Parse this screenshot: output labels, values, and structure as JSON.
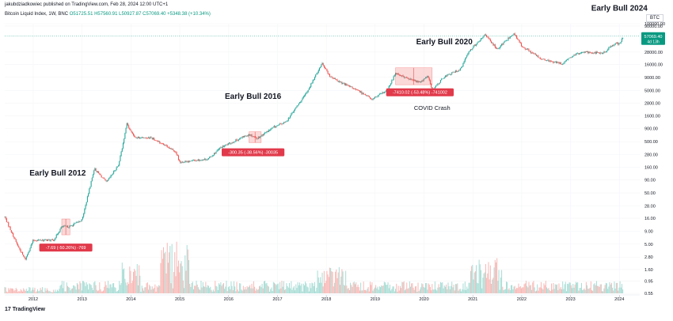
{
  "publisher": "jakubdziadkowiec published on TradingView.com, Feb 28, 2024 12:00 UTC+1",
  "legend": {
    "symbol": "Bitcoin Liquid Index, 1W, BNC",
    "ohlc": "O51725.51  H57560.91  L50927.87  C57069.40  +5348.38 (+10.34%)"
  },
  "currency": "BTC",
  "brand": "TradingView",
  "colors": {
    "up": "#26a69a",
    "down": "#ef5350",
    "vol_up": "#a8dcd5",
    "vol_down": "#f7b8b5",
    "axis_text": "#131722",
    "price_tag": "#089981",
    "annot_bg": "#e13a4b"
  },
  "chart_data": {
    "type": "candlestick",
    "title": "",
    "y_scale": "log",
    "ylim": [
      0.55,
      100000
    ],
    "xlim": [
      "2011-06",
      "2024-06"
    ],
    "y_tick_labels": [
      "100000.00",
      "90000.00",
      "28000.00",
      "16000.00",
      "9000.00",
      "5000.00",
      "2800.00",
      "1600.00",
      "900.00",
      "500.00",
      "280.00",
      "160.00",
      "90.00",
      "50.00",
      "28.00",
      "16.00",
      "9.00",
      "5.00",
      "2.80",
      "1.60",
      "0.95",
      "0.55"
    ],
    "x_tick_labels": [
      "2012",
      "2013",
      "2014",
      "2015",
      "2016",
      "2017",
      "2018",
      "2019",
      "2020",
      "2021",
      "2022",
      "2023",
      "2024"
    ],
    "last_price": {
      "value": "57069.40",
      "countdown": "4d 13h"
    },
    "price_path": [
      [
        "2011-06",
        17
      ],
      [
        "2011-09",
        5
      ],
      [
        "2011-11",
        2.5
      ],
      [
        "2012-01",
        6
      ],
      [
        "2012-06",
        6
      ],
      [
        "2012-08",
        11
      ],
      [
        "2012-10",
        11
      ],
      [
        "2013-01",
        15
      ],
      [
        "2013-04",
        150
      ],
      [
        "2013-07",
        80
      ],
      [
        "2013-10",
        180
      ],
      [
        "2013-12",
        1100
      ],
      [
        "2014-02",
        600
      ],
      [
        "2014-06",
        600
      ],
      [
        "2014-12",
        320
      ],
      [
        "2015-01",
        200
      ],
      [
        "2015-08",
        230
      ],
      [
        "2015-11",
        380
      ],
      [
        "2016-06",
        700
      ],
      [
        "2016-08",
        580
      ],
      [
        "2016-12",
        950
      ],
      [
        "2017-03",
        1200
      ],
      [
        "2017-08",
        4300
      ],
      [
        "2017-12",
        17000
      ],
      [
        "2018-02",
        9000
      ],
      [
        "2018-06",
        6300
      ],
      [
        "2018-11",
        4000
      ],
      [
        "2018-12",
        3300
      ],
      [
        "2019-04",
        5000
      ],
      [
        "2019-06",
        11000
      ],
      [
        "2019-09",
        8500
      ],
      [
        "2019-12",
        7200
      ],
      [
        "2020-02",
        9500
      ],
      [
        "2020-03",
        5000
      ],
      [
        "2020-06",
        9300
      ],
      [
        "2020-10",
        13000
      ],
      [
        "2020-12",
        29000
      ],
      [
        "2021-04",
        60000
      ],
      [
        "2021-07",
        32000
      ],
      [
        "2021-11",
        65000
      ],
      [
        "2022-01",
        37000
      ],
      [
        "2022-06",
        20000
      ],
      [
        "2022-11",
        16500
      ],
      [
        "2023-01",
        22000
      ],
      [
        "2023-04",
        28500
      ],
      [
        "2023-09",
        26500
      ],
      [
        "2023-12",
        42000
      ],
      [
        "2024-01",
        40000
      ],
      [
        "2024-02",
        57069
      ]
    ],
    "annotations": [
      {
        "label": "Early Bull 2012",
        "date": "2012-07",
        "price": 110
      },
      {
        "label": "Early Bull 2016",
        "date": "2016-07",
        "price": 3400
      },
      {
        "label": "Early Bull 2020",
        "date": "2020-06",
        "price": 40000
      },
      {
        "label": "Early Bull 2024",
        "date": "2024-01",
        "price": 180000
      },
      {
        "label": "COVID Crash",
        "date": "2020-03",
        "price": 2100
      }
    ],
    "measure_boxes": [
      {
        "label": "-7.69 (-50.26%) -769",
        "start": [
          "2012-08",
          15.5
        ],
        "end": [
          "2012-10",
          7.6
        ],
        "tag_at": [
          "2012-09",
          4.3
        ]
      },
      {
        "label": "-300.35 (-38.56%) -30035",
        "start": [
          "2016-06",
          780
        ],
        "end": [
          "2016-09",
          480
        ],
        "tag_at": [
          "2016-07",
          310
        ]
      },
      {
        "label": "-7410.02 (-53.48%) -741002",
        "start": [
          "2019-06",
          13800
        ],
        "end": [
          "2020-03",
          6450
        ],
        "tag_at": [
          "2019-12",
          4600
        ]
      }
    ]
  }
}
